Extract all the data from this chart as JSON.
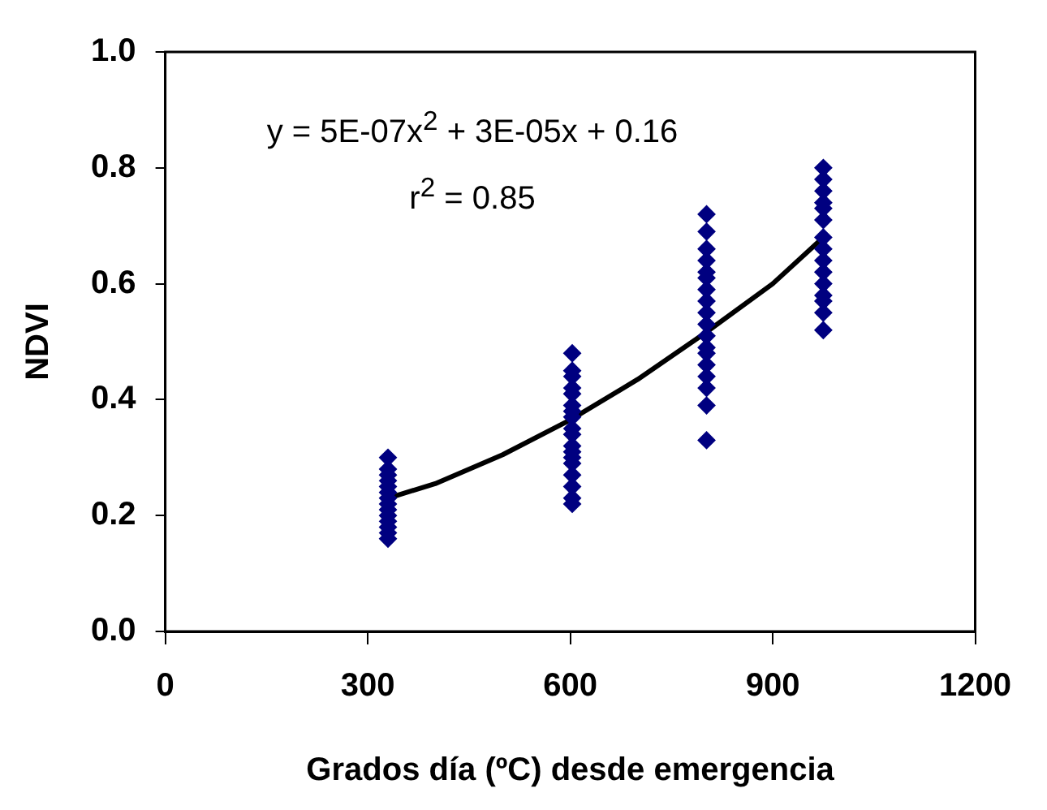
{
  "chart_data": {
    "type": "scatter",
    "xlabel": "Grados día (ºC) desde emergencia",
    "ylabel": "NDVI",
    "xlim": [
      0,
      1200
    ],
    "xticks": [
      0,
      300,
      600,
      900,
      1200
    ],
    "ylim": [
      0,
      1
    ],
    "yticks": [
      {
        "value": 0,
        "label": "0.0"
      },
      {
        "value": 0.2,
        "label": "0.2"
      },
      {
        "value": 0.4,
        "label": "0.4"
      },
      {
        "value": 0.6,
        "label": "0.6"
      },
      {
        "value": 0.8,
        "label": "0.8"
      },
      {
        "value": 1,
        "label": "1.0"
      }
    ],
    "grid": false,
    "legend": false,
    "annotations": [
      "y = 5E-07x$^{2}$ + 3E-05x + 0.16",
      "r$^{2}$ = 0.85"
    ],
    "series": [
      {
        "color": "#000080",
        "marker": "diamond",
        "x": [
          330,
          330,
          330,
          330,
          330,
          330,
          330,
          330,
          330,
          330,
          330,
          330,
          330,
          330,
          603,
          603,
          603,
          603,
          603,
          603,
          603,
          603,
          603,
          603,
          603,
          603,
          603,
          603,
          603,
          603,
          603,
          603,
          802,
          802,
          802,
          802,
          802,
          802,
          802,
          802,
          802,
          802,
          802,
          802,
          802,
          802,
          802,
          802,
          802,
          802,
          975,
          975,
          975,
          975,
          975,
          975,
          975,
          975,
          975,
          975,
          975,
          975,
          975,
          975,
          975
        ],
        "values": [
          0.3,
          0.28,
          0.27,
          0.26,
          0.25,
          0.24,
          0.23,
          0.22,
          0.21,
          0.2,
          0.19,
          0.18,
          0.17,
          0.16,
          0.48,
          0.45,
          0.44,
          0.42,
          0.41,
          0.39,
          0.38,
          0.37,
          0.35,
          0.34,
          0.32,
          0.31,
          0.3,
          0.29,
          0.27,
          0.25,
          0.23,
          0.22,
          0.72,
          0.69,
          0.66,
          0.64,
          0.62,
          0.61,
          0.59,
          0.57,
          0.55,
          0.53,
          0.51,
          0.49,
          0.48,
          0.46,
          0.44,
          0.42,
          0.39,
          0.33,
          0.8,
          0.78,
          0.76,
          0.74,
          0.73,
          0.71,
          0.68,
          0.66,
          0.64,
          0.62,
          0.6,
          0.58,
          0.57,
          0.55,
          0.52
        ]
      },
      {
        "type": "line",
        "marker": "none",
        "color": "#000000",
        "x": [
          330,
          400,
          500,
          600,
          700,
          800,
          900,
          975
        ],
        "values": [
          0.23,
          0.255,
          0.305,
          0.365,
          0.435,
          0.515,
          0.6,
          0.68
        ]
      }
    ]
  }
}
